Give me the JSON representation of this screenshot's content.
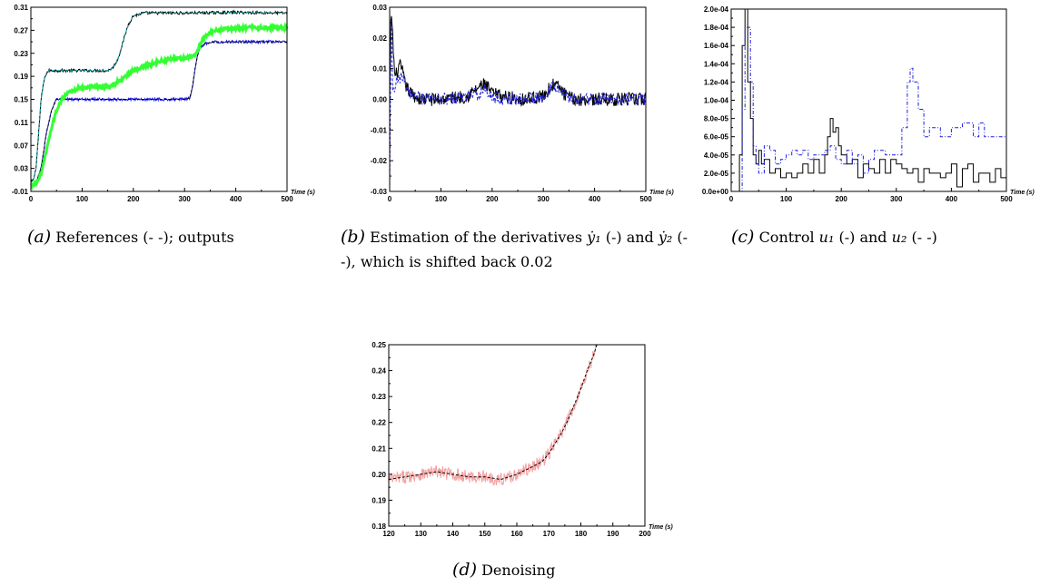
{
  "panels": [
    {
      "id": "a",
      "caption_label": "(a)",
      "caption_text": "References (- -); outputs"
    },
    {
      "id": "b",
      "caption_label": "(b)",
      "caption_pre": "Estimation of the derivatives",
      "caption_mid1": "(-)",
      "caption_and": "and",
      "caption_post": "(- -), which is shifted back 0.02",
      "sym1": "ẏ₁",
      "sym2": "ẏ₂"
    },
    {
      "id": "c",
      "caption_label": "(c)",
      "caption_pre": "Control",
      "caption_mid": "(-) and",
      "caption_post": "(- -)",
      "sym1": "u₁",
      "sym2": "u₂"
    },
    {
      "id": "d",
      "caption_label": "(d)",
      "caption_text": "Denoising"
    }
  ],
  "colors": {
    "black": "#000000",
    "blue": "#1f1fe0",
    "green": "#33ff33",
    "cyan": "#00b0b0",
    "pink": "#f4a0a0"
  },
  "chart_data": [
    {
      "type": "line",
      "xlabel": "Time (s)",
      "xlim": [
        0,
        500
      ],
      "ylim": [
        -0.01,
        0.31
      ],
      "xticks": [
        "0",
        "100",
        "200",
        "300",
        "400",
        "500"
      ],
      "yticks": [
        "-0.01",
        "0.03",
        "0.07",
        "0.11",
        "0.15",
        "0.19",
        "0.23",
        "0.27",
        "0.31"
      ],
      "series": [
        {
          "color": "black",
          "style": "solid",
          "noise": 0.0025,
          "x": [
            0,
            5,
            10,
            20,
            25,
            30,
            35,
            40,
            50,
            100,
            150,
            160,
            170,
            180,
            190,
            200,
            220,
            300,
            400,
            500
          ],
          "y": [
            0.005,
            0.01,
            0.03,
            0.15,
            0.18,
            0.195,
            0.2,
            0.2,
            0.2,
            0.2,
            0.2,
            0.205,
            0.22,
            0.25,
            0.28,
            0.295,
            0.3,
            0.3,
            0.301,
            0.3
          ]
        },
        {
          "color": "cyan",
          "style": "dashed",
          "noise": 0,
          "x": [
            0,
            5,
            10,
            20,
            25,
            30,
            35,
            40,
            50,
            100,
            150,
            160,
            170,
            180,
            190,
            200,
            220,
            300,
            400,
            500
          ],
          "y": [
            0.005,
            0.01,
            0.03,
            0.15,
            0.18,
            0.195,
            0.2,
            0.2,
            0.2,
            0.2,
            0.2,
            0.205,
            0.22,
            0.25,
            0.28,
            0.295,
            0.3,
            0.3,
            0.301,
            0.3
          ]
        },
        {
          "color": "blue",
          "style": "solid",
          "noise": 0.0025,
          "x": [
            0,
            10,
            20,
            30,
            40,
            50,
            60,
            100,
            200,
            300,
            310,
            315,
            320,
            325,
            330,
            340,
            360,
            400,
            450,
            500
          ],
          "y": [
            0,
            0.005,
            0.03,
            0.09,
            0.13,
            0.15,
            0.15,
            0.15,
            0.15,
            0.15,
            0.152,
            0.17,
            0.2,
            0.225,
            0.24,
            0.247,
            0.25,
            0.25,
            0.25,
            0.25
          ]
        },
        {
          "color": "black",
          "style": "dashed",
          "noise": 0,
          "x": [
            0,
            10,
            20,
            30,
            40,
            50,
            60,
            100,
            200,
            300,
            310,
            315,
            320,
            325,
            330,
            340,
            360,
            400,
            450,
            500
          ],
          "y": [
            0,
            0.005,
            0.03,
            0.09,
            0.13,
            0.15,
            0.15,
            0.15,
            0.15,
            0.15,
            0.152,
            0.17,
            0.2,
            0.225,
            0.24,
            0.247,
            0.25,
            0.25,
            0.25,
            0.25
          ]
        },
        {
          "color": "green",
          "style": "thick",
          "noise": 0.003,
          "x": [
            0,
            10,
            20,
            30,
            40,
            50,
            60,
            70,
            100,
            150,
            170,
            200,
            230,
            260,
            300,
            320,
            330,
            340,
            360,
            400,
            450,
            500
          ],
          "y": [
            0,
            0.005,
            0.02,
            0.06,
            0.1,
            0.13,
            0.15,
            0.16,
            0.17,
            0.172,
            0.18,
            0.2,
            0.21,
            0.218,
            0.222,
            0.225,
            0.245,
            0.26,
            0.27,
            0.274,
            0.275,
            0.275
          ]
        }
      ]
    },
    {
      "type": "line",
      "xlabel": "Time (s)",
      "xlim": [
        0,
        500
      ],
      "ylim": [
        -0.03,
        0.03
      ],
      "xticks": [
        "0",
        "100",
        "200",
        "300",
        "400",
        "500"
      ],
      "yticks": [
        "-0.03",
        "-0.02",
        "-0.01",
        "0.00",
        "0.01",
        "0.02",
        "0.03"
      ],
      "series": [
        {
          "color": "black",
          "style": "solid",
          "noise": 0.0022,
          "x": [
            0,
            3,
            10,
            20,
            25,
            30,
            40,
            60,
            80,
            100,
            150,
            175,
            185,
            200,
            220,
            260,
            300,
            320,
            330,
            345,
            360,
            400,
            450,
            500
          ],
          "y": [
            0,
            0.03,
            0.007,
            0.011,
            0.009,
            0.005,
            0.002,
            0,
            0,
            0,
            0.001,
            0.004,
            0.005,
            0.002,
            0.001,
            0,
            0.001,
            0.005,
            0.004,
            0.001,
            0,
            0,
            0,
            0
          ]
        },
        {
          "color": "blue",
          "style": "dashed",
          "noise": 0.002,
          "x": [
            0,
            3,
            6,
            15,
            25,
            30,
            40,
            60,
            80,
            100,
            150,
            175,
            185,
            200,
            220,
            260,
            300,
            320,
            330,
            345,
            360,
            400,
            450,
            500
          ],
          "y": [
            -0.03,
            0.03,
            0.002,
            0.006,
            0.007,
            0.006,
            0.002,
            0,
            0,
            0,
            0.001,
            0.002,
            0.003,
            0.001,
            0,
            0,
            0.001,
            0.005,
            0.004,
            0.001,
            0,
            0,
            0,
            0
          ]
        }
      ]
    },
    {
      "type": "line",
      "xlabel": "Time (s)",
      "xlim": [
        0,
        500
      ],
      "ylim": [
        0,
        0.0002
      ],
      "xticks": [
        "0",
        "100",
        "200",
        "300",
        "400",
        "500"
      ],
      "yticks": [
        "0.0e+00",
        "2.0e-05",
        "4.0e-05",
        "6.0e-05",
        "8.0e-05",
        "1.0e-04",
        "1.2e-04",
        "1.4e-04",
        "1.6e-04",
        "1.8e-04",
        "2.0e-04"
      ],
      "series": [
        {
          "color": "black",
          "style": "step",
          "x": [
            0,
            10,
            15,
            20,
            25,
            30,
            35,
            40,
            45,
            50,
            55,
            60,
            70,
            80,
            90,
            100,
            110,
            120,
            130,
            140,
            150,
            160,
            170,
            175,
            180,
            185,
            190,
            195,
            200,
            210,
            220,
            230,
            240,
            250,
            260,
            270,
            280,
            290,
            300,
            310,
            320,
            330,
            340,
            350,
            360,
            370,
            380,
            390,
            400,
            410,
            420,
            430,
            440,
            450,
            460,
            470,
            480,
            490,
            500
          ],
          "y": [
            0,
            0,
            4e-05,
            0.00016,
            0.0002,
            0.00012,
            8e-05,
            4e-05,
            3e-05,
            4.5e-05,
            3e-05,
            3.5e-05,
            2e-05,
            2.5e-05,
            1.5e-05,
            2e-05,
            1.5e-05,
            2e-05,
            3e-05,
            2e-05,
            3.5e-05,
            2e-05,
            4e-05,
            6e-05,
            8e-05,
            6.5e-05,
            7e-05,
            5e-05,
            4e-05,
            3e-05,
            3.5e-05,
            1.5e-05,
            3e-05,
            2.5e-05,
            2e-05,
            3.5e-05,
            2e-05,
            3.5e-05,
            3e-05,
            2.5e-05,
            2e-05,
            2.5e-05,
            1e-05,
            2.5e-05,
            2e-05,
            2e-05,
            1.5e-05,
            2e-05,
            3e-05,
            5e-06,
            2.5e-05,
            3e-05,
            1e-05,
            2e-05,
            2e-05,
            1e-05,
            2.5e-05,
            1.5e-05,
            2.5e-05
          ]
        },
        {
          "color": "blue",
          "style": "dashstep",
          "x": [
            0,
            10,
            20,
            25,
            30,
            35,
            40,
            45,
            50,
            60,
            70,
            80,
            90,
            100,
            110,
            120,
            130,
            140,
            150,
            160,
            170,
            180,
            190,
            200,
            210,
            220,
            230,
            240,
            250,
            260,
            280,
            300,
            310,
            320,
            325,
            330,
            340,
            350,
            360,
            380,
            400,
            420,
            440,
            450,
            460,
            480,
            500
          ],
          "y": [
            0,
            0,
            9e-05,
            0.00018,
            0.00018,
            0.00012,
            5e-05,
            3e-05,
            2e-05,
            5e-05,
            4.5e-05,
            3e-05,
            3.5e-05,
            4e-05,
            4.5e-05,
            4e-05,
            4.5e-05,
            3.5e-05,
            4e-05,
            4e-05,
            4.5e-05,
            5e-05,
            3.5e-05,
            3e-05,
            4.5e-05,
            3e-05,
            4e-05,
            2e-05,
            3.5e-05,
            4.5e-05,
            4e-05,
            4e-05,
            7e-05,
            0.00012,
            0.000135,
            0.00012,
            9e-05,
            6e-05,
            7e-05,
            6e-05,
            7e-05,
            7.5e-05,
            6e-05,
            7.5e-05,
            6e-05,
            6e-05,
            6e-05
          ]
        }
      ]
    },
    {
      "type": "line",
      "xlabel": "Time (s)",
      "xlim": [
        120,
        200
      ],
      "ylim": [
        0.18,
        0.25
      ],
      "xticks": [
        "120",
        "130",
        "140",
        "150",
        "160",
        "170",
        "180",
        "190",
        "200"
      ],
      "yticks": [
        "0.18",
        "0.19",
        "0.20",
        "0.21",
        "0.22",
        "0.23",
        "0.24",
        "0.25"
      ],
      "series": [
        {
          "color": "pink",
          "style": "solid",
          "noise": 0.0025,
          "x": [
            120,
            125,
            130,
            135,
            140,
            145,
            150,
            155,
            160,
            165,
            168,
            170,
            172,
            174,
            176,
            178,
            180,
            182,
            184,
            185
          ],
          "y": [
            0.198,
            0.199,
            0.2,
            0.201,
            0.2,
            0.199,
            0.199,
            0.198,
            0.2,
            0.203,
            0.205,
            0.208,
            0.212,
            0.216,
            0.221,
            0.227,
            0.233,
            0.24,
            0.246,
            0.25
          ]
        },
        {
          "color": "black",
          "style": "dashed",
          "noise": 0,
          "x": [
            120,
            125,
            130,
            135,
            140,
            145,
            150,
            155,
            160,
            165,
            168,
            170,
            172,
            174,
            176,
            178,
            180,
            182,
            184,
            185
          ],
          "y": [
            0.198,
            0.199,
            0.2,
            0.201,
            0.2,
            0.199,
            0.199,
            0.198,
            0.2,
            0.203,
            0.205,
            0.208,
            0.212,
            0.216,
            0.221,
            0.227,
            0.233,
            0.24,
            0.246,
            0.25
          ]
        }
      ]
    }
  ]
}
